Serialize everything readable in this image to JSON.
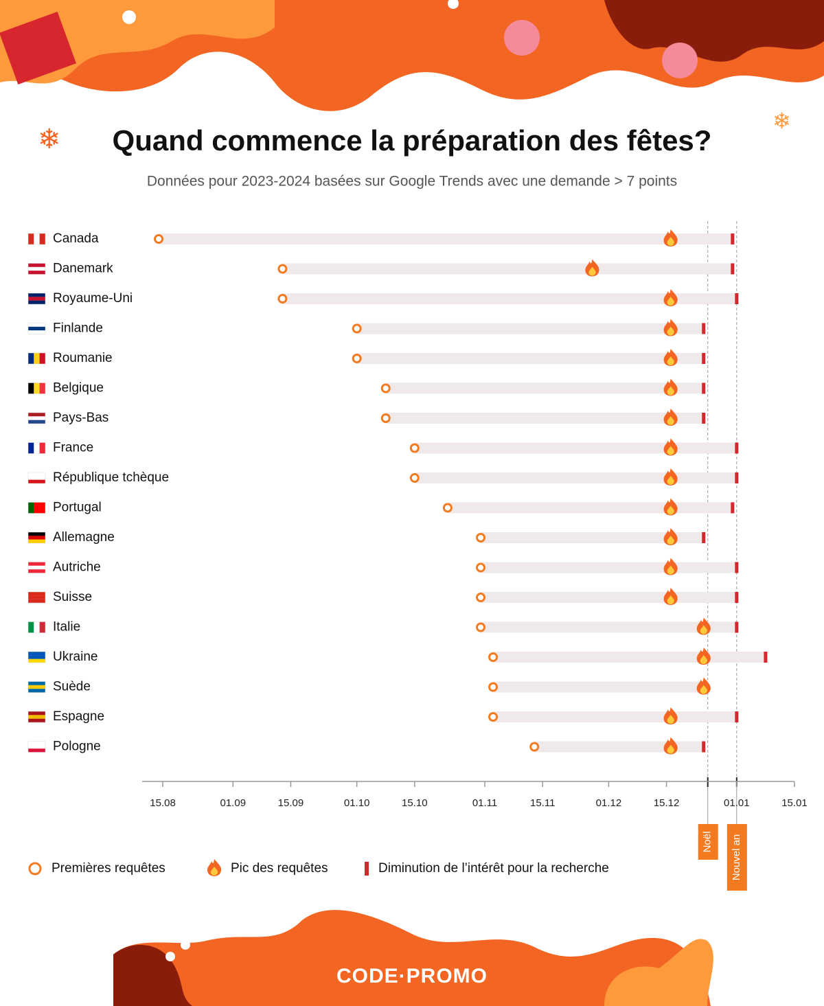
{
  "chart_data": {
    "type": "timeline",
    "title": "Quand commence la préparation des fêtes?",
    "subtitle": "Données pour 2023-2024 basées sur Google Trends avec une demande > 7 points",
    "categories": [
      "Canada",
      "Danemark",
      "Royaume-Uni",
      "Finlande",
      "Roumanie",
      "Belgique",
      "Pays-Bas",
      "France",
      "République tchèque",
      "Portugal",
      "Allemagne",
      "Autriche",
      "Suisse",
      "Italie",
      "Ukraine",
      "Suède",
      "Espagne",
      "Pologne"
    ],
    "series": [
      {
        "name": "Premières requêtes",
        "color": "#f47a1f",
        "values": [
          226,
          256,
          256,
          274,
          274,
          281,
          281,
          288,
          288,
          296,
          304,
          304,
          304,
          304,
          307,
          307,
          307,
          317
        ]
      },
      {
        "name": "Pic des requêtes",
        "color": "#f26522",
        "values": [
          350,
          331,
          350,
          350,
          350,
          350,
          350,
          350,
          350,
          350,
          350,
          350,
          350,
          358,
          358,
          358,
          350,
          350
        ]
      },
      {
        "name": "Diminution de l’intérêt pour la recherche",
        "color": "#d7262d",
        "values": [
          365,
          365,
          366,
          358,
          358,
          358,
          358,
          366,
          366,
          365,
          358,
          366,
          366,
          366,
          373,
          null,
          366,
          358
        ]
      }
    ],
    "xlim": [
      222,
      380
    ],
    "xticks": [
      {
        "value": 227,
        "label": "15.08"
      },
      {
        "value": 244,
        "label": "01.09"
      },
      {
        "value": 258,
        "label": "15.09"
      },
      {
        "value": 274,
        "label": "01.10"
      },
      {
        "value": 288,
        "label": "15.10"
      },
      {
        "value": 305,
        "label": "01.11"
      },
      {
        "value": 319,
        "label": "15.11"
      },
      {
        "value": 335,
        "label": "01.12"
      },
      {
        "value": 349,
        "label": "15.12"
      },
      {
        "value": 366,
        "label": "01.01"
      },
      {
        "value": 380,
        "label": "15.01"
      }
    ],
    "markers": [
      {
        "label": "Noël",
        "value": 359
      },
      {
        "label": "Nouvel an",
        "value": 366
      }
    ],
    "brand": "CODE·PROMO"
  }
}
